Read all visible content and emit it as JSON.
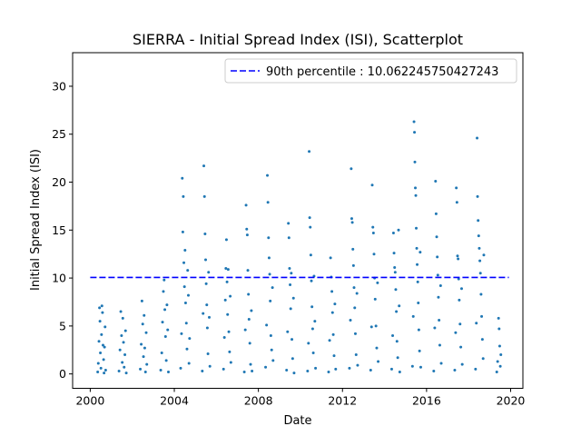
{
  "chart_data": {
    "type": "scatter",
    "title": "SIERRA - Initial Spread Index (ISI), Scatterplot",
    "xlabel": "Date",
    "ylabel": "Initial Spread Index (ISI)",
    "xlim": [
      "1999-03-01",
      "2020-08-01"
    ],
    "ylim": [
      -1.5,
      33.5
    ],
    "xticks": [
      {
        "date": "2000-01-01",
        "label": "2000"
      },
      {
        "date": "2004-01-01",
        "label": "2004"
      },
      {
        "date": "2008-01-01",
        "label": "2008"
      },
      {
        "date": "2012-01-01",
        "label": "2012"
      },
      {
        "date": "2016-01-01",
        "label": "2016"
      },
      {
        "date": "2020-01-01",
        "label": "2020"
      }
    ],
    "yticks": [
      0,
      5,
      10,
      15,
      20,
      25,
      30
    ],
    "grid": false,
    "legend_position": "upper right",
    "point_color": "#1f77b4",
    "reference_line": {
      "label": "90th percentile : 10.062245750427243",
      "value": 10.062245750427243,
      "color": "#0000ff",
      "style": "dashed"
    },
    "series": [
      {
        "values": [
          [
            "2000-05-10",
            0.2
          ],
          [
            "2000-05-20",
            1.1
          ],
          [
            "2000-06-01",
            3.4
          ],
          [
            "2000-06-10",
            6.9
          ],
          [
            "2000-06-18",
            5.5
          ],
          [
            "2000-06-25",
            2.2
          ],
          [
            "2000-07-05",
            0.6
          ],
          [
            "2000-07-15",
            4.1
          ],
          [
            "2000-07-22",
            7.1
          ],
          [
            "2000-08-01",
            6.4
          ],
          [
            "2000-08-10",
            3.0
          ],
          [
            "2000-08-20",
            1.5
          ],
          [
            "2000-08-28",
            0.1
          ],
          [
            "2000-09-05",
            2.8
          ],
          [
            "2000-09-15",
            4.9
          ],
          [
            "2000-09-25",
            0.4
          ],
          [
            "2001-05-15",
            0.3
          ],
          [
            "2001-06-01",
            2.5
          ],
          [
            "2001-06-15",
            6.5
          ],
          [
            "2001-06-28",
            4.0
          ],
          [
            "2001-07-10",
            1.2
          ],
          [
            "2001-07-20",
            5.8
          ],
          [
            "2001-08-01",
            3.3
          ],
          [
            "2001-08-12",
            0.7
          ],
          [
            "2001-08-25",
            2.0
          ],
          [
            "2001-09-05",
            4.5
          ],
          [
            "2001-09-18",
            0.1
          ],
          [
            "2002-05-20",
            0.5
          ],
          [
            "2002-06-05",
            3.1
          ],
          [
            "2002-06-18",
            7.6
          ],
          [
            "2002-07-01",
            5.2
          ],
          [
            "2002-07-14",
            1.8
          ],
          [
            "2002-07-25",
            6.1
          ],
          [
            "2002-08-05",
            2.7
          ],
          [
            "2002-08-18",
            0.2
          ],
          [
            "2002-08-30",
            4.3
          ],
          [
            "2002-09-10",
            1.0
          ],
          [
            "2003-05-10",
            0.4
          ],
          [
            "2003-05-28",
            2.2
          ],
          [
            "2003-06-10",
            5.4
          ],
          [
            "2003-06-25",
            8.6
          ],
          [
            "2003-07-08",
            9.8
          ],
          [
            "2003-07-20",
            6.7
          ],
          [
            "2003-08-01",
            3.9
          ],
          [
            "2003-08-14",
            1.4
          ],
          [
            "2003-08-26",
            7.2
          ],
          [
            "2003-09-08",
            4.6
          ],
          [
            "2003-09-20",
            0.2
          ],
          [
            "2004-04-20",
            0.6
          ],
          [
            "2004-05-05",
            4.2
          ],
          [
            "2004-05-18",
            20.4
          ],
          [
            "2004-05-28",
            14.8
          ],
          [
            "2004-06-05",
            18.5
          ],
          [
            "2004-06-15",
            11.6
          ],
          [
            "2004-06-25",
            9.1
          ],
          [
            "2004-07-05",
            12.9
          ],
          [
            "2004-07-15",
            7.4
          ],
          [
            "2004-07-28",
            5.3
          ],
          [
            "2004-08-08",
            2.6
          ],
          [
            "2004-08-20",
            10.8
          ],
          [
            "2004-09-01",
            8.2
          ],
          [
            "2004-09-12",
            1.1
          ],
          [
            "2004-09-22",
            3.7
          ],
          [
            "2005-05-01",
            0.3
          ],
          [
            "2005-05-15",
            6.3
          ],
          [
            "2005-05-28",
            21.7
          ],
          [
            "2005-06-08",
            18.5
          ],
          [
            "2005-06-18",
            14.6
          ],
          [
            "2005-06-28",
            11.9
          ],
          [
            "2005-07-08",
            9.4
          ],
          [
            "2005-07-18",
            7.2
          ],
          [
            "2005-07-28",
            4.8
          ],
          [
            "2005-08-08",
            2.1
          ],
          [
            "2005-08-18",
            10.6
          ],
          [
            "2005-08-30",
            5.9
          ],
          [
            "2005-09-10",
            0.8
          ],
          [
            "2006-05-05",
            0.5
          ],
          [
            "2006-05-20",
            3.8
          ],
          [
            "2006-06-05",
            7.7
          ],
          [
            "2006-06-15",
            11.0
          ],
          [
            "2006-06-25",
            14.0
          ],
          [
            "2006-07-05",
            9.6
          ],
          [
            "2006-07-15",
            6.2
          ],
          [
            "2006-07-25",
            10.9
          ],
          [
            "2006-08-05",
            4.4
          ],
          [
            "2006-08-18",
            2.3
          ],
          [
            "2006-08-30",
            8.1
          ],
          [
            "2006-09-10",
            1.2
          ],
          [
            "2007-05-01",
            0.2
          ],
          [
            "2007-05-18",
            4.6
          ],
          [
            "2007-06-01",
            17.6
          ],
          [
            "2007-06-12",
            15.1
          ],
          [
            "2007-06-22",
            14.5
          ],
          [
            "2007-07-02",
            10.8
          ],
          [
            "2007-07-12",
            8.3
          ],
          [
            "2007-07-22",
            5.7
          ],
          [
            "2007-08-05",
            3.2
          ],
          [
            "2007-08-18",
            1.0
          ],
          [
            "2007-09-01",
            6.6
          ],
          [
            "2007-09-12",
            0.3
          ],
          [
            "2008-05-05",
            0.7
          ],
          [
            "2008-05-22",
            5.1
          ],
          [
            "2008-06-05",
            20.7
          ],
          [
            "2008-06-15",
            17.9
          ],
          [
            "2008-06-25",
            14.2
          ],
          [
            "2008-07-05",
            12.1
          ],
          [
            "2008-07-15",
            10.4
          ],
          [
            "2008-07-25",
            7.6
          ],
          [
            "2008-08-05",
            4.0
          ],
          [
            "2008-08-18",
            2.5
          ],
          [
            "2008-09-01",
            9.0
          ],
          [
            "2008-09-12",
            1.4
          ],
          [
            "2009-05-05",
            0.4
          ],
          [
            "2009-05-22",
            4.4
          ],
          [
            "2009-06-05",
            15.7
          ],
          [
            "2009-06-15",
            14.2
          ],
          [
            "2009-06-25",
            11.0
          ],
          [
            "2009-07-05",
            9.3
          ],
          [
            "2009-07-15",
            6.8
          ],
          [
            "2009-07-25",
            10.5
          ],
          [
            "2009-08-05",
            3.6
          ],
          [
            "2009-08-18",
            1.6
          ],
          [
            "2009-09-01",
            7.9
          ],
          [
            "2009-09-12",
            0.1
          ],
          [
            "2010-05-05",
            0.3
          ],
          [
            "2010-05-20",
            3.2
          ],
          [
            "2010-06-01",
            23.2
          ],
          [
            "2010-06-10",
            16.3
          ],
          [
            "2010-06-20",
            15.3
          ],
          [
            "2010-06-30",
            12.4
          ],
          [
            "2010-07-10",
            9.7
          ],
          [
            "2010-07-20",
            7.0
          ],
          [
            "2010-08-01",
            4.7
          ],
          [
            "2010-08-12",
            2.2
          ],
          [
            "2010-08-25",
            10.2
          ],
          [
            "2010-09-08",
            5.5
          ],
          [
            "2010-09-20",
            0.6
          ],
          [
            "2011-05-05",
            0.2
          ],
          [
            "2011-05-22",
            3.5
          ],
          [
            "2011-06-08",
            12.1
          ],
          [
            "2011-06-20",
            10.1
          ],
          [
            "2011-07-01",
            8.6
          ],
          [
            "2011-07-12",
            6.4
          ],
          [
            "2011-07-25",
            4.1
          ],
          [
            "2011-08-08",
            1.9
          ],
          [
            "2011-08-22",
            7.3
          ],
          [
            "2011-09-05",
            0.5
          ],
          [
            "2012-05-01",
            0.6
          ],
          [
            "2012-05-18",
            5.6
          ],
          [
            "2012-06-01",
            21.4
          ],
          [
            "2012-06-10",
            16.2
          ],
          [
            "2012-06-20",
            15.8
          ],
          [
            "2012-06-30",
            13.0
          ],
          [
            "2012-07-10",
            11.3
          ],
          [
            "2012-07-20",
            9.0
          ],
          [
            "2012-08-01",
            6.9
          ],
          [
            "2012-08-12",
            4.2
          ],
          [
            "2012-08-25",
            2.0
          ],
          [
            "2012-09-08",
            8.4
          ],
          [
            "2012-09-20",
            0.9
          ],
          [
            "2013-05-05",
            0.4
          ],
          [
            "2013-05-20",
            4.9
          ],
          [
            "2013-06-01",
            19.7
          ],
          [
            "2013-06-12",
            15.3
          ],
          [
            "2013-06-22",
            14.7
          ],
          [
            "2013-07-02",
            12.5
          ],
          [
            "2013-07-12",
            10.0
          ],
          [
            "2013-07-22",
            7.8
          ],
          [
            "2013-08-05",
            5.0
          ],
          [
            "2013-08-18",
            2.7
          ],
          [
            "2013-09-01",
            9.5
          ],
          [
            "2013-09-12",
            1.3
          ],
          [
            "2014-05-05",
            0.5
          ],
          [
            "2014-05-22",
            4.0
          ],
          [
            "2014-06-05",
            14.7
          ],
          [
            "2014-06-15",
            12.6
          ],
          [
            "2014-06-25",
            11.1
          ],
          [
            "2014-07-05",
            10.6
          ],
          [
            "2014-07-15",
            8.8
          ],
          [
            "2014-07-25",
            6.5
          ],
          [
            "2014-08-05",
            3.4
          ],
          [
            "2014-08-18",
            1.7
          ],
          [
            "2014-09-01",
            15.0
          ],
          [
            "2014-09-12",
            7.1
          ],
          [
            "2014-09-22",
            0.2
          ],
          [
            "2015-05-01",
            0.8
          ],
          [
            "2015-05-15",
            6.0
          ],
          [
            "2015-05-28",
            26.3
          ],
          [
            "2015-06-05",
            25.2
          ],
          [
            "2015-06-12",
            22.1
          ],
          [
            "2015-06-20",
            19.4
          ],
          [
            "2015-06-28",
            18.6
          ],
          [
            "2015-07-06",
            15.2
          ],
          [
            "2015-07-14",
            13.1
          ],
          [
            "2015-07-22",
            11.4
          ],
          [
            "2015-08-01",
            9.6
          ],
          [
            "2015-08-10",
            7.4
          ],
          [
            "2015-08-20",
            4.6
          ],
          [
            "2015-09-01",
            2.4
          ],
          [
            "2015-09-12",
            12.7
          ],
          [
            "2015-09-22",
            0.7
          ],
          [
            "2016-05-05",
            0.3
          ],
          [
            "2016-05-22",
            4.8
          ],
          [
            "2016-06-05",
            20.1
          ],
          [
            "2016-06-15",
            16.7
          ],
          [
            "2016-06-25",
            14.3
          ],
          [
            "2016-07-05",
            12.2
          ],
          [
            "2016-07-15",
            10.3
          ],
          [
            "2016-07-25",
            8.0
          ],
          [
            "2016-08-05",
            5.6
          ],
          [
            "2016-08-18",
            3.0
          ],
          [
            "2016-09-01",
            9.2
          ],
          [
            "2016-09-12",
            1.1
          ],
          [
            "2017-05-05",
            0.4
          ],
          [
            "2017-05-20",
            4.3
          ],
          [
            "2017-06-01",
            19.4
          ],
          [
            "2017-06-12",
            17.9
          ],
          [
            "2017-06-22",
            12.3
          ],
          [
            "2017-07-02",
            12.0
          ],
          [
            "2017-07-12",
            9.9
          ],
          [
            "2017-07-22",
            7.7
          ],
          [
            "2017-08-05",
            5.2
          ],
          [
            "2017-08-18",
            2.8
          ],
          [
            "2017-09-01",
            8.9
          ],
          [
            "2017-09-12",
            1.0
          ],
          [
            "2018-05-01",
            0.5
          ],
          [
            "2018-05-15",
            5.3
          ],
          [
            "2018-05-28",
            24.6
          ],
          [
            "2018-06-05",
            18.5
          ],
          [
            "2018-06-15",
            16.0
          ],
          [
            "2018-06-25",
            14.4
          ],
          [
            "2018-07-05",
            13.1
          ],
          [
            "2018-07-15",
            11.8
          ],
          [
            "2018-07-25",
            10.5
          ],
          [
            "2018-08-05",
            8.3
          ],
          [
            "2018-08-15",
            6.0
          ],
          [
            "2018-08-28",
            3.6
          ],
          [
            "2018-09-10",
            1.6
          ],
          [
            "2018-09-22",
            12.4
          ],
          [
            "2019-05-05",
            0.2
          ],
          [
            "2019-05-20",
            1.3
          ],
          [
            "2019-06-05",
            5.8
          ],
          [
            "2019-06-15",
            4.7
          ],
          [
            "2019-06-25",
            2.9
          ],
          [
            "2019-07-05",
            0.8
          ],
          [
            "2019-07-15",
            2.0
          ]
        ]
      }
    ]
  }
}
